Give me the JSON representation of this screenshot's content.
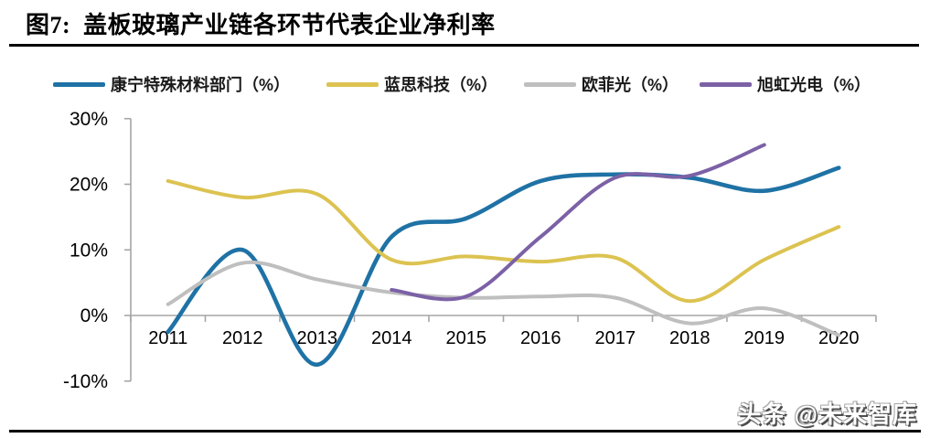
{
  "title": "图7:  盖板玻璃产业链各环节代表企业净利率",
  "watermark": "头条 @未来智库",
  "chart_data": {
    "type": "line",
    "title": "盖板玻璃产业链各环节代表企业净利率",
    "xlabel": "",
    "ylabel": "",
    "categories": [
      "2011",
      "2012",
      "2013",
      "2014",
      "2015",
      "2016",
      "2017",
      "2018",
      "2019",
      "2020"
    ],
    "series": [
      {
        "name": "康宁特殊材料部门（%）",
        "color": "#1F72A5",
        "values": [
          -2.5,
          10,
          -7.5,
          12,
          14.8,
          20.5,
          21.5,
          21,
          19,
          22.5
        ]
      },
      {
        "name": "蓝思科技（%）",
        "color": "#DCC351",
        "values": [
          20.5,
          18,
          18.5,
          8.5,
          9,
          8.2,
          8.8,
          2.2,
          8.5,
          13.5
        ]
      },
      {
        "name": "欧菲光（%）",
        "color": "#BFBFBF",
        "values": [
          1.7,
          8,
          5.5,
          3.5,
          2.7,
          2.9,
          2.7,
          -1.2,
          1.1,
          -3
        ]
      },
      {
        "name": "旭虹光电（%）",
        "color": "#7C61A6",
        "values": [
          null,
          null,
          null,
          3.9,
          2.9,
          12,
          21,
          21.3,
          26,
          null
        ]
      }
    ],
    "y_ticks": [
      {
        "label": "30%",
        "value": 30
      },
      {
        "label": "20%",
        "value": 20
      },
      {
        "label": "10%",
        "value": 10
      },
      {
        "label": "0%",
        "value": 0
      },
      {
        "label": "-10%",
        "value": -10
      }
    ],
    "ylim": [
      -10,
      30
    ],
    "grid": false,
    "smooth": true,
    "legend_position": "top",
    "axis_color": "#A6A6A6"
  }
}
